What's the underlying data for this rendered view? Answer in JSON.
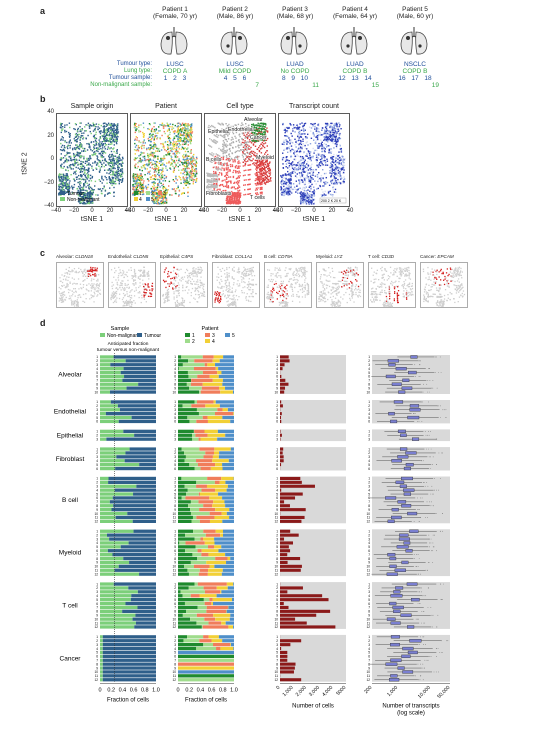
{
  "panel_letters": {
    "a": "a",
    "b": "b",
    "c": "c",
    "d": "d"
  },
  "patients": [
    {
      "title": "Patient 1",
      "sub": "(Female, 70 yr)",
      "tumour": "LUSC",
      "lung": "COPD A",
      "samples": [
        "1",
        "2",
        "3"
      ],
      "nonmal": ""
    },
    {
      "title": "Patient 2",
      "sub": "(Male, 86 yr)",
      "tumour": "LUSC",
      "lung": "Mild COPD",
      "samples": [
        "4",
        "5",
        "6"
      ],
      "nonmal": "7"
    },
    {
      "title": "Patient 3",
      "sub": "(Male, 68 yr)",
      "tumour": "LUAD",
      "lung": "No COPD",
      "samples": [
        "8",
        "9",
        "10"
      ],
      "nonmal": "11"
    },
    {
      "title": "Patient 4",
      "sub": "(Female, 64 yr)",
      "tumour": "LUAD",
      "lung": "COPD B",
      "samples": [
        "12",
        "13",
        "14"
      ],
      "nonmal": "15"
    },
    {
      "title": "Patient 5",
      "sub": "(Male, 60 yr)",
      "tumour": "NSCLC",
      "lung": "COPD B",
      "samples": [
        "16",
        "17",
        "18"
      ],
      "nonmal": "19"
    }
  ],
  "row_labels": {
    "tumour": "Tumour type:",
    "lung": "Lung type:",
    "sample": "Tumour sample:",
    "nonmal": "Non-malignant sample:"
  },
  "tsne": {
    "titles": [
      "Sample origin",
      "Patient",
      "Cell type",
      "Transcript count"
    ],
    "xlabel": "tSNE 1",
    "ylabel": "tSNE 2",
    "xticks": [
      "−40",
      "−20",
      "0",
      "20",
      "40"
    ],
    "yticks": [
      "40",
      "20",
      "0",
      "−20",
      "−40"
    ],
    "legend_origin": [
      "Tumour",
      "Non-malignant"
    ],
    "legend_patient": [
      "1",
      "2",
      "3",
      "4",
      "5"
    ],
    "celltype_labels": [
      "Alveolar",
      "Epithelial",
      "Endothelial",
      "Cancer",
      "B cells",
      "Myeloid",
      "Fibroblasts",
      "T cells"
    ],
    "count_legend": "200 2 K  20 K"
  },
  "markers": [
    {
      "type": "Alveolar:",
      "gene": "CLDN18"
    },
    {
      "type": "Endothelial:",
      "gene": "CLDN5"
    },
    {
      "type": "Epithelial:",
      "gene": "C4PS"
    },
    {
      "type": "Fibroblast:",
      "gene": "COL1A1"
    },
    {
      "type": "B cell:",
      "gene": "CD79A"
    },
    {
      "type": "Myeloid:",
      "gene": "LYZ"
    },
    {
      "type": "T cell:",
      "gene": "CD3D"
    },
    {
      "type": "Cancer:",
      "gene": "EPCAM"
    }
  ],
  "panel_d": {
    "sample_title": "Sample",
    "sample_legend": [
      "Non-malignant",
      "Tumour"
    ],
    "patient_title": "Patient",
    "patient_legend": [
      "1",
      "2",
      "3",
      "4",
      "5"
    ],
    "anticipated": "Anticipated fraction\ntumour versus non-malignant",
    "groups": [
      "Alveolar",
      "Endothelial",
      "Epithelial",
      "Fibroblast",
      "B cell",
      "Myeloid",
      "T cell",
      "Cancer"
    ],
    "xlabel_fraction": "Fraction of cells",
    "xlabel_count": "Number of cells",
    "xlabel_transcripts": "Number of transcripts",
    "xlabel_transcripts2": "(log scale)",
    "fraction_ticks": [
      "0",
      "0.2",
      "0.4",
      "0.6",
      "0.8",
      "1.0"
    ],
    "count_ticks": [
      "0",
      "1,000",
      "2,000",
      "3,000",
      "4,000",
      "5000"
    ],
    "transcript_ticks": [
      "200",
      "1,000",
      "10,000",
      "50,000"
    ]
  },
  "colors": {
    "tumour": "#2f5f8a",
    "nonmal": "#7ccf7a",
    "p1": "#1f8a2e",
    "p2": "#9fdc8c",
    "p3": "#f07d5b",
    "p4": "#f2d036",
    "p5": "#4f8fc9",
    "bar": "#8b1a1a",
    "box": "#7a7fd1"
  }
}
